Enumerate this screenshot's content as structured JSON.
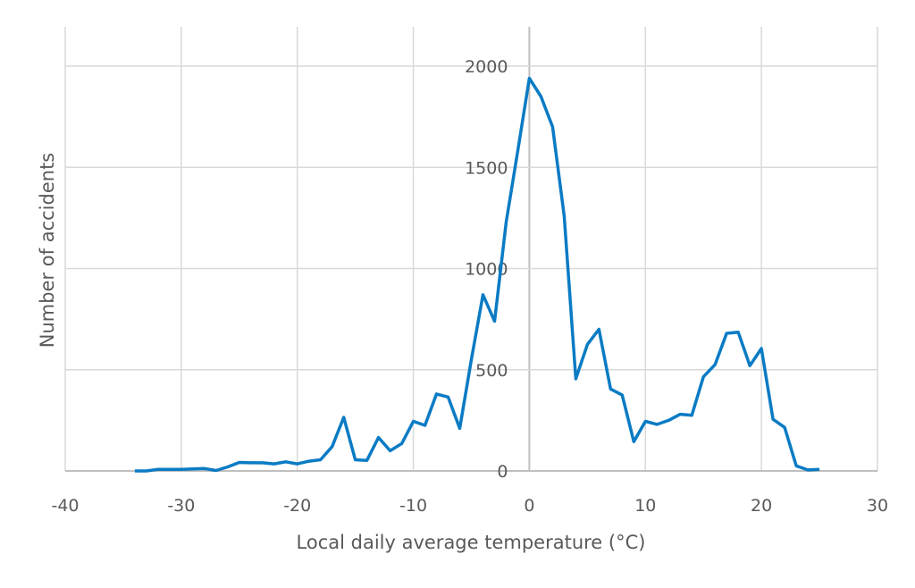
{
  "chart_data": {
    "type": "line",
    "title": "",
    "xlabel": "Local daily average temperature (°C)",
    "ylabel": "Number of accidents",
    "xlim": [
      -40,
      30
    ],
    "ylim": [
      0,
      2000
    ],
    "xticks": [
      -40,
      -30,
      -20,
      -10,
      0,
      10,
      20,
      30
    ],
    "yticks": [
      0,
      500,
      1000,
      1500,
      2000
    ],
    "grid": true,
    "line_color": "#0a7bc4",
    "x": [
      -34,
      -33,
      -32,
      -31,
      -30,
      -29,
      -28,
      -27,
      -26,
      -25,
      -24,
      -23,
      -22,
      -21,
      -20,
      -19,
      -18,
      -17,
      -16,
      -15,
      -14,
      -13,
      -12,
      -11,
      -10,
      -9,
      -8,
      -7,
      -6,
      -5,
      -4,
      -3,
      -2,
      -1,
      0,
      1,
      2,
      3,
      4,
      5,
      6,
      7,
      8,
      9,
      10,
      11,
      12,
      13,
      14,
      15,
      16,
      17,
      18,
      19,
      20,
      21,
      22,
      23,
      24,
      25
    ],
    "y": [
      0,
      0,
      8,
      8,
      8,
      10,
      12,
      2,
      20,
      42,
      40,
      40,
      35,
      45,
      35,
      48,
      55,
      120,
      265,
      55,
      52,
      165,
      100,
      135,
      245,
      225,
      380,
      365,
      210,
      550,
      870,
      740,
      1230,
      1580,
      1940,
      1850,
      1700,
      1260,
      455,
      625,
      700,
      405,
      375,
      145,
      245,
      230,
      250,
      280,
      275,
      465,
      525,
      680,
      685,
      520,
      605,
      255,
      215,
      25,
      5,
      8
    ]
  }
}
